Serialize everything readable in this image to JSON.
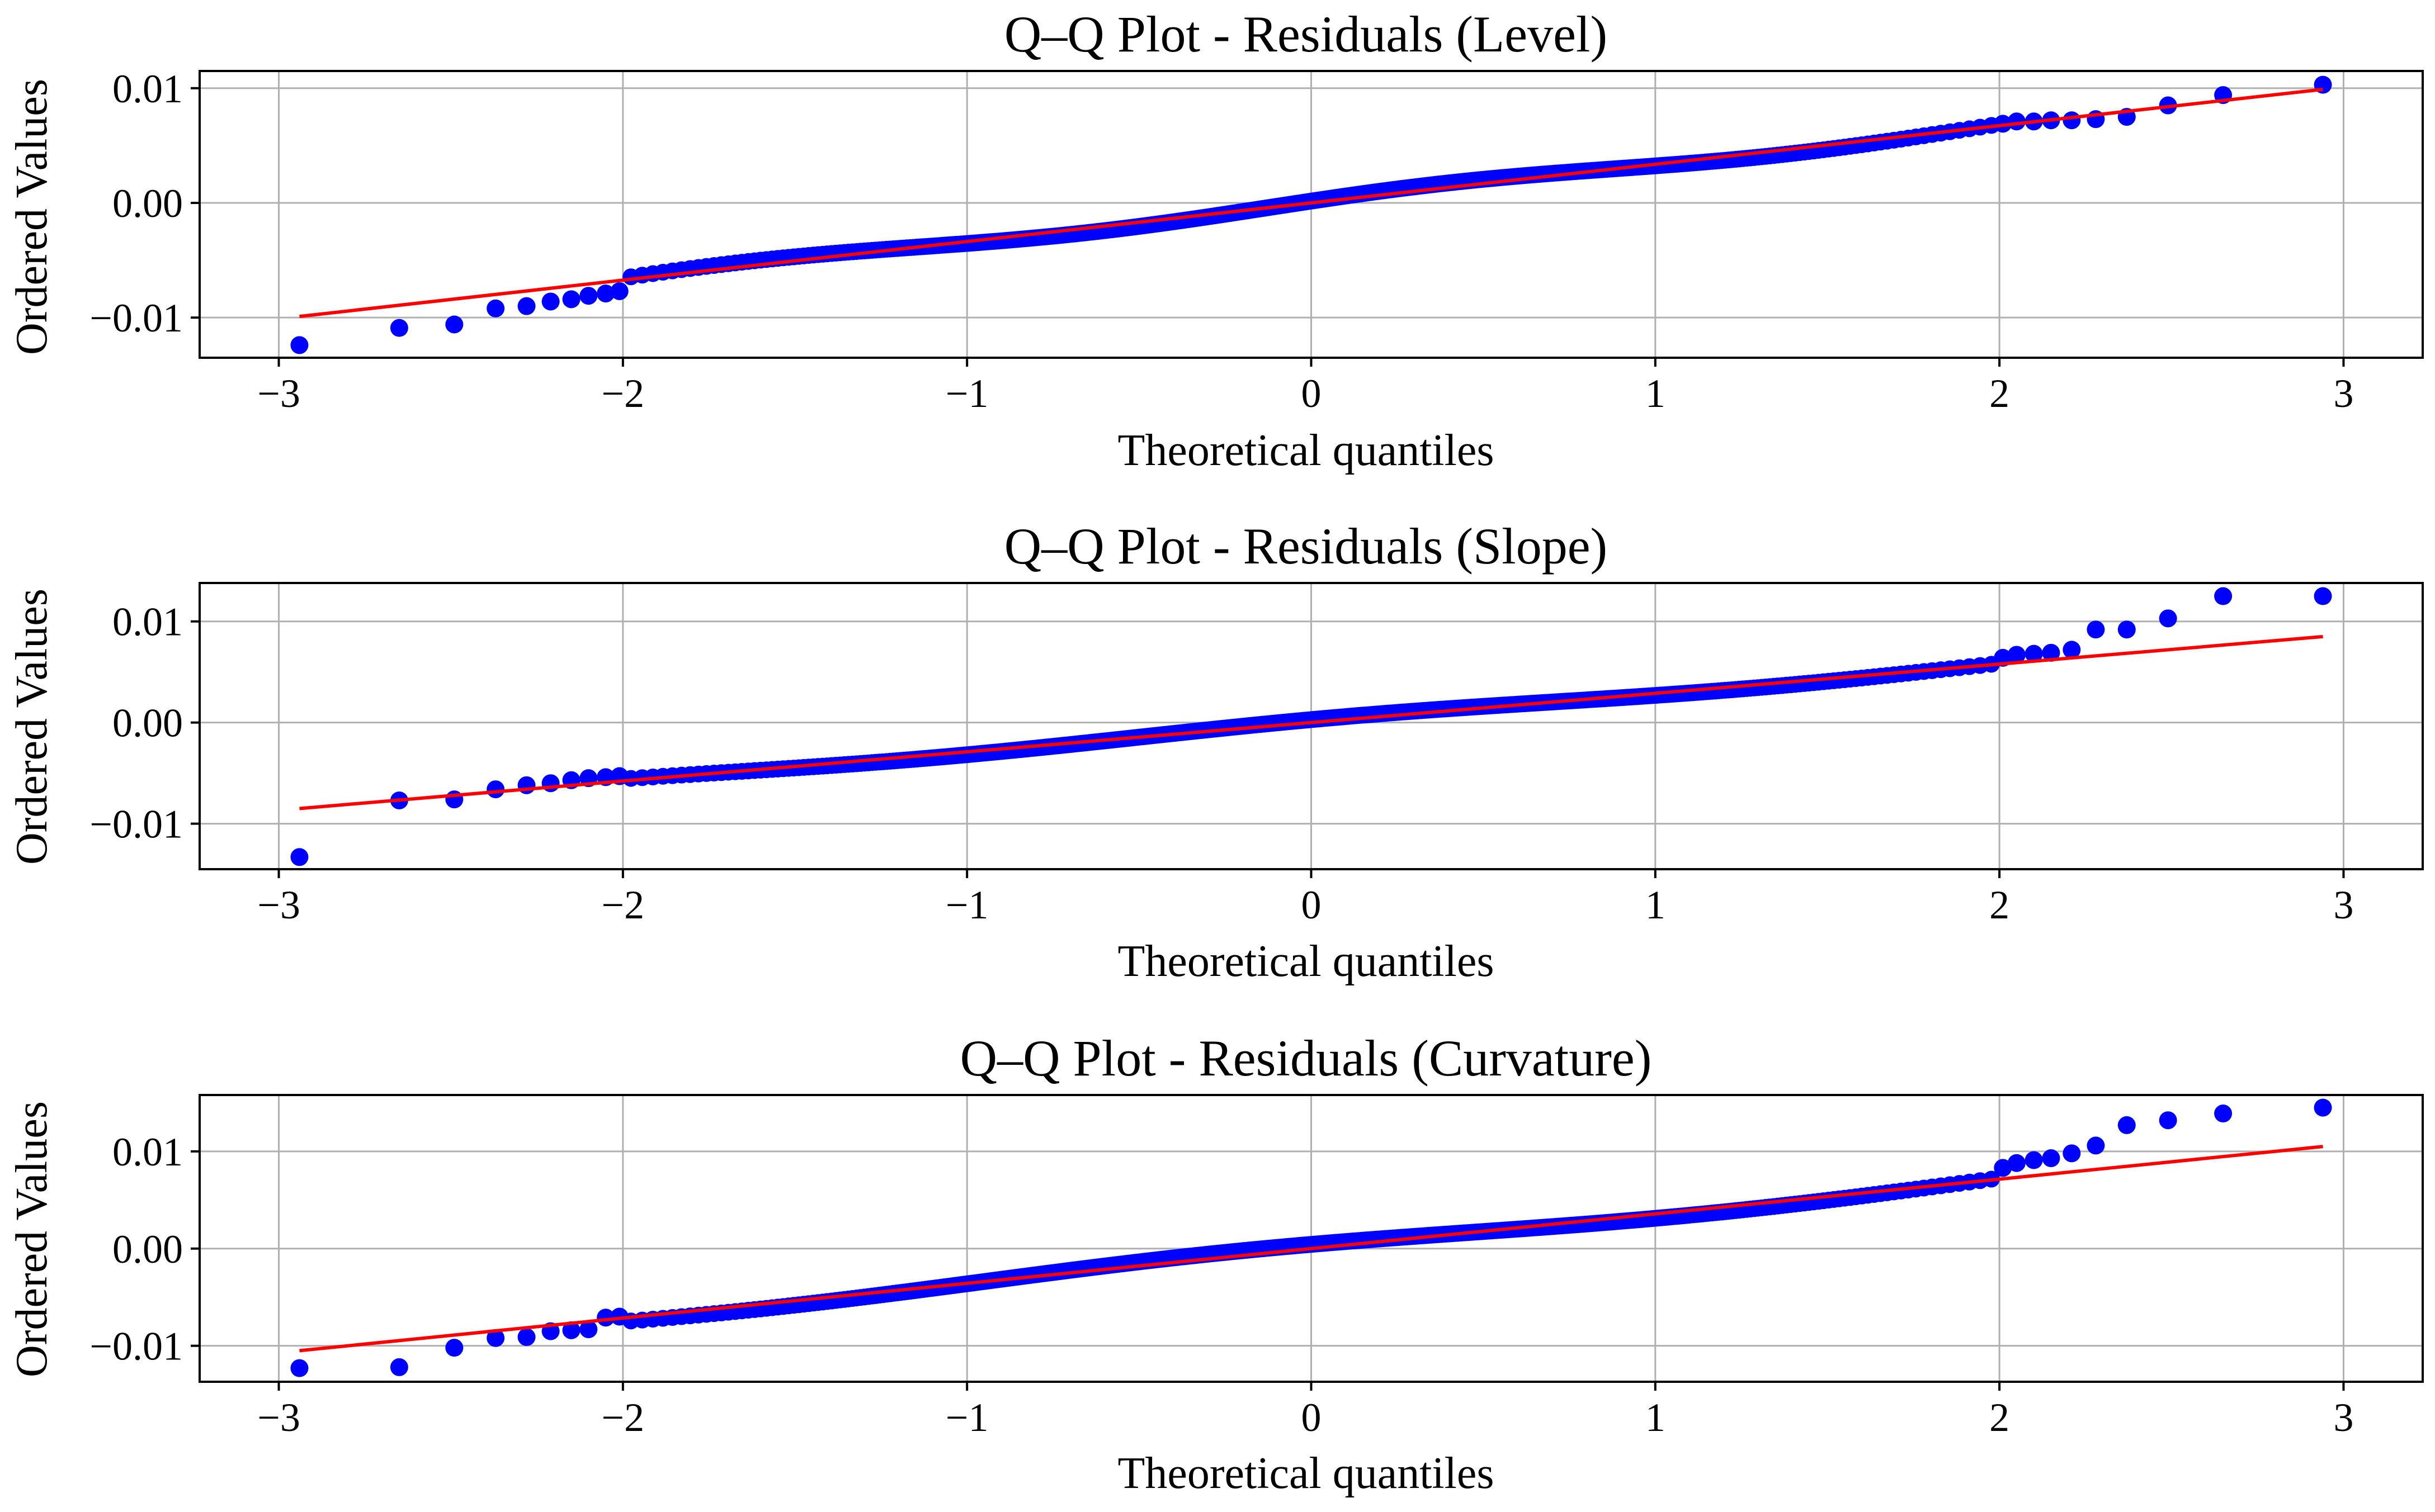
{
  "colors": {
    "points": "#0000ff",
    "fit_line": "#ff0000",
    "grid": "#b0b0b0"
  },
  "chart_data": [
    {
      "type": "scatter",
      "title": "Q–Q Plot - Residuals (Level)",
      "xlabel": "Theoretical quantiles",
      "ylabel": "Ordered Values",
      "xlim": [
        -3.23,
        3.23
      ],
      "ylim": [
        -0.0135,
        0.0115
      ],
      "xticks": [
        -3,
        -2,
        -1,
        0,
        1,
        2,
        3
      ],
      "xtick_labels": [
        "−3",
        "−2",
        "−1",
        "0",
        "1",
        "2",
        "3"
      ],
      "yticks": [
        -0.01,
        0.0,
        0.01
      ],
      "ytick_labels": [
        "−0.01",
        "0.00",
        "0.01"
      ],
      "grid": true,
      "series": [
        {
          "kind": "points",
          "x": [
            -2.94,
            -2.65,
            -2.49,
            -2.37,
            -2.28,
            -2.21,
            -2.15,
            -2.1,
            -2.05,
            -2.01
          ],
          "y": [
            -0.0124,
            -0.0109,
            -0.0106,
            -0.0092,
            -0.009,
            -0.0086,
            -0.0084,
            -0.0081,
            -0.0079,
            -0.0077
          ]
        },
        {
          "kind": "points",
          "x": [
            2.01,
            2.05,
            2.1,
            2.15,
            2.21,
            2.28,
            2.37,
            2.49,
            2.65,
            2.94
          ],
          "y": [
            0.0069,
            0.0071,
            0.0071,
            0.0072,
            0.0072,
            0.0073,
            0.0075,
            0.0085,
            0.0094,
            0.0103
          ]
        },
        {
          "kind": "fit_line",
          "x": [
            -2.94,
            2.94
          ],
          "y": [
            -0.0099,
            0.0099
          ]
        }
      ],
      "body_deviation": {
        "amp": 0.0004,
        "freq": 3.1,
        "phase": 0.4
      }
    },
    {
      "type": "scatter",
      "title": "Q–Q Plot - Residuals (Slope)",
      "xlabel": "Theoretical quantiles",
      "ylabel": "Ordered Values",
      "xlim": [
        -3.23,
        3.23
      ],
      "ylim": [
        -0.0145,
        0.0138
      ],
      "xticks": [
        -3,
        -2,
        -1,
        0,
        1,
        2,
        3
      ],
      "xtick_labels": [
        "−3",
        "−2",
        "−1",
        "0",
        "1",
        "2",
        "3"
      ],
      "yticks": [
        -0.01,
        0.0,
        0.01
      ],
      "ytick_labels": [
        "−0.01",
        "0.00",
        "0.01"
      ],
      "grid": true,
      "series": [
        {
          "kind": "points",
          "x": [
            -2.94,
            -2.65,
            -2.49,
            -2.37,
            -2.28,
            -2.21,
            -2.15,
            -2.1,
            -2.05,
            -2.01
          ],
          "y": [
            -0.0133,
            -0.0077,
            -0.0076,
            -0.0066,
            -0.0062,
            -0.006,
            -0.0057,
            -0.0055,
            -0.0054,
            -0.0053
          ]
        },
        {
          "kind": "points",
          "x": [
            2.01,
            2.05,
            2.1,
            2.15,
            2.21,
            2.28,
            2.37,
            2.49,
            2.65,
            2.94
          ],
          "y": [
            0.0064,
            0.0067,
            0.0068,
            0.0069,
            0.0072,
            0.0092,
            0.0092,
            0.0103,
            0.0125,
            0.0125
          ]
        },
        {
          "kind": "fit_line",
          "x": [
            -2.94,
            2.94
          ],
          "y": [
            -0.0085,
            0.0085
          ]
        }
      ],
      "body_deviation": {
        "amp": 0.0003,
        "freq": 2.6,
        "phase": 1.3
      }
    },
    {
      "type": "scatter",
      "title": "Q–Q Plot - Residuals (Curvature)",
      "xlabel": "Theoretical quantiles",
      "ylabel": "Ordered Values",
      "xlim": [
        -3.23,
        3.23
      ],
      "ylim": [
        -0.0137,
        0.0158
      ],
      "xticks": [
        -3,
        -2,
        -1,
        0,
        1,
        2,
        3
      ],
      "xtick_labels": [
        "−3",
        "−2",
        "−1",
        "0",
        "1",
        "2",
        "3"
      ],
      "yticks": [
        -0.01,
        0.0,
        0.01
      ],
      "ytick_labels": [
        "−0.01",
        "0.00",
        "0.01"
      ],
      "grid": true,
      "series": [
        {
          "kind": "points",
          "x": [
            -2.94,
            -2.65,
            -2.49,
            -2.37,
            -2.28,
            -2.21,
            -2.15,
            -2.1,
            -2.05,
            -2.01
          ],
          "y": [
            -0.0123,
            -0.0122,
            -0.0102,
            -0.0092,
            -0.0091,
            -0.0085,
            -0.0084,
            -0.0083,
            -0.0071,
            -0.007
          ]
        },
        {
          "kind": "points",
          "x": [
            2.01,
            2.05,
            2.1,
            2.15,
            2.21,
            2.28,
            2.37,
            2.49,
            2.65,
            2.94
          ],
          "y": [
            0.0083,
            0.0088,
            0.0091,
            0.0093,
            0.0098,
            0.0106,
            0.0127,
            0.0132,
            0.0139,
            0.0145
          ]
        },
        {
          "kind": "fit_line",
          "x": [
            -2.94,
            2.94
          ],
          "y": [
            -0.0105,
            0.0105
          ]
        }
      ],
      "body_deviation": {
        "amp": 0.0005,
        "freq": 2.2,
        "phase": 2.1
      }
    }
  ]
}
